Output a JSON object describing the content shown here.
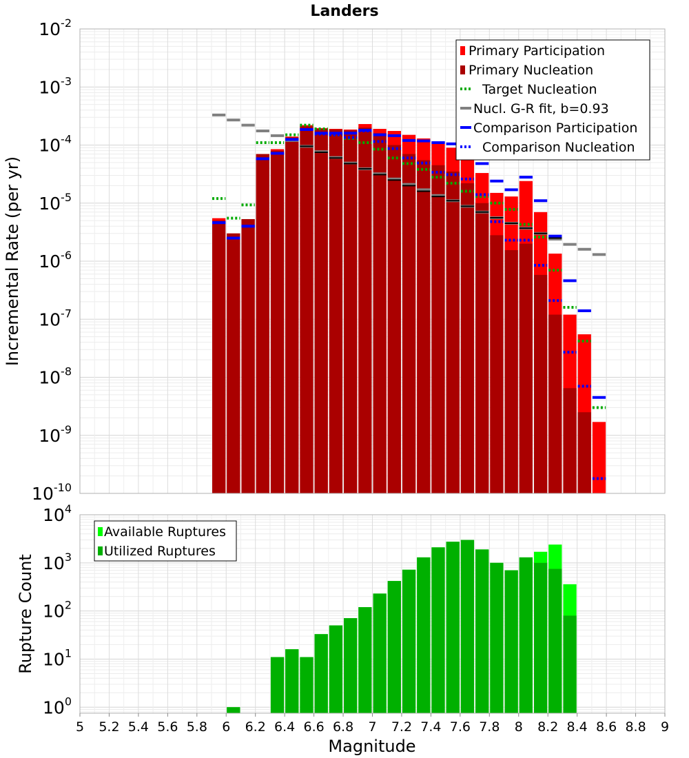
{
  "chart_data": [
    {
      "type": "bar",
      "title": "Landers",
      "xlabel": "",
      "ylabel": "Incremental Rate (per yr)",
      "yscale": "log",
      "ylim": [
        1e-10,
        0.01
      ],
      "xlim": [
        5,
        9
      ],
      "grid": true,
      "legend_position": "top-right",
      "bin_width": 0.1,
      "series": [
        {
          "name": "Primary Participation",
          "style": "bar",
          "color": "#ff0000",
          "x": [
            5.95,
            6.05,
            6.15,
            6.25,
            6.35,
            6.45,
            6.55,
            6.65,
            6.75,
            6.85,
            6.95,
            7.05,
            7.15,
            7.25,
            7.35,
            7.45,
            7.55,
            7.65,
            7.75,
            7.85,
            7.95,
            8.05,
            8.15,
            8.25,
            8.35,
            8.45,
            8.55
          ],
          "values": [
            5.5e-06,
            3e-06,
            5.3e-06,
            7e-05,
            8.5e-05,
            0.00014,
            0.00022,
            0.000195,
            0.00019,
            0.000185,
            0.00023,
            0.00019,
            0.000175,
            0.00015,
            0.00013,
            0.000115,
            9e-05,
            7e-05,
            3.3e-05,
            1.5e-05,
            1.3e-05,
            2.4e-05,
            7e-06,
            1.35e-06,
            1.2e-07,
            5.5e-08,
            1.7e-09
          ]
        },
        {
          "name": "Primary Nucleation",
          "style": "bar",
          "color": "#aa0000",
          "x": [
            5.95,
            6.05,
            6.15,
            6.25,
            6.35,
            6.45,
            6.55,
            6.65,
            6.75,
            6.85,
            6.95,
            7.05,
            7.15,
            7.25,
            7.35,
            7.45,
            7.55,
            7.65,
            7.75,
            7.85,
            7.95,
            8.05,
            8.15,
            8.25,
            8.35,
            8.45,
            8.55
          ],
          "values": [
            5e-06,
            3e-06,
            5.3e-06,
            7e-05,
            8e-05,
            0.000135,
            0.00021,
            0.00019,
            0.000185,
            0.00018,
            0.0002,
            0.00016,
            0.0001,
            7e-05,
            5.5e-05,
            4.5e-05,
            3.5e-05,
            2.2e-05,
            1e-05,
            2.8e-06,
            1.55e-06,
            2e-06,
            5.8e-07,
            1.2e-07,
            6.5e-09,
            2.5e-09,
            null
          ]
        },
        {
          "name": "Target Nucleation",
          "style": "dotted-step",
          "color": "#00aa00",
          "x": [
            5.95,
            6.05,
            6.15,
            6.25,
            6.35,
            6.45,
            6.55,
            6.65,
            6.75,
            6.85,
            6.95,
            7.05,
            7.15,
            7.25,
            7.35,
            7.45,
            7.55,
            7.65,
            7.75,
            7.85,
            7.95,
            8.05,
            8.15,
            8.25,
            8.35,
            8.45,
            8.55
          ],
          "values": [
            1.2e-05,
            5.5e-06,
            9.3e-06,
            0.00011,
            0.00011,
            0.00015,
            0.00022,
            0.00019,
            0.00015,
            0.00013,
            0.00011,
            8.5e-05,
            6e-05,
            4.8e-05,
            3.8e-05,
            2.8e-05,
            2.2e-05,
            1.6e-05,
            1.3e-05,
            1e-05,
            7.8e-06,
            4.3e-06,
            2.6e-06,
            7e-07,
            1.6e-07,
            4.2e-08,
            3e-09
          ]
        },
        {
          "name": "Nucl. G-R fit, b=0.93",
          "style": "step",
          "color": "#808080",
          "x": [
            5.95,
            6.05,
            6.15,
            6.25,
            6.35,
            6.45,
            6.55,
            6.65,
            6.75,
            6.85,
            6.95,
            7.05,
            7.15,
            7.25,
            7.35,
            7.45,
            7.55,
            7.65,
            7.75,
            7.85,
            7.95,
            8.05,
            8.15,
            8.25,
            8.35,
            8.45,
            8.55
          ],
          "values": [
            0.00033,
            0.00027,
            0.00022,
            0.000175,
            0.000145,
            0.00012,
            9.5e-05,
            7.7e-05,
            6.1e-05,
            4.9e-05,
            3.9e-05,
            3.2e-05,
            2.6e-05,
            2.1e-05,
            1.7e-05,
            1.35e-05,
            1.1e-05,
            8.8e-06,
            7e-06,
            5.6e-06,
            4.5e-06,
            3.7e-06,
            3e-06,
            2.4e-06,
            1.95e-06,
            1.6e-06,
            1.3e-06
          ]
        },
        {
          "name": "Comparison Participation",
          "style": "step",
          "color": "#0000ff",
          "x": [
            5.95,
            6.05,
            6.15,
            6.25,
            6.35,
            6.45,
            6.55,
            6.65,
            6.75,
            6.85,
            6.95,
            7.05,
            7.15,
            7.25,
            7.35,
            7.45,
            7.55,
            7.65,
            7.75,
            7.85,
            7.95,
            8.05,
            8.15,
            8.25,
            8.35,
            8.45,
            8.55
          ],
          "values": [
            4.6e-06,
            2.5e-06,
            4e-06,
            5.8e-05,
            7.2e-05,
            0.000125,
            0.000185,
            0.00016,
            0.00016,
            0.00016,
            0.00018,
            0.00015,
            0.000145,
            0.00012,
            0.000118,
            0.00011,
            0.000105,
            0.0001,
            4.8e-05,
            2.4e-05,
            1.7e-05,
            2.8e-05,
            1.1e-05,
            2.7e-06,
            4.6e-07,
            1.4e-07,
            4.5e-09
          ]
        },
        {
          "name": "Comparison Nucleation",
          "style": "dotted-step",
          "color": "#0000ff",
          "x": [
            5.95,
            6.05,
            6.15,
            6.25,
            6.35,
            6.45,
            6.55,
            6.65,
            6.75,
            6.85,
            6.95,
            7.05,
            7.15,
            7.25,
            7.35,
            7.45,
            7.55,
            7.65,
            7.75,
            7.85,
            7.95,
            8.05,
            8.15,
            8.25,
            8.35,
            8.45,
            8.55
          ],
          "values": [
            4.6e-06,
            2.5e-06,
            4e-06,
            5.8e-05,
            7.2e-05,
            0.000125,
            0.000185,
            0.000155,
            0.00015,
            0.000135,
            0.000175,
            0.000115,
            8.7e-05,
            6e-05,
            4.9e-05,
            3.4e-05,
            3.1e-05,
            2.6e-05,
            1.4e-05,
            4.8e-06,
            2.3e-06,
            2.3e-06,
            8.5e-07,
            2.1e-07,
            2.7e-08,
            7e-09,
            1.8e-10
          ]
        },
        {
          "name": "",
          "style": "step",
          "color": "#000000",
          "x": [
            5.95,
            6.05,
            6.15,
            6.25,
            6.35,
            6.45,
            6.55,
            6.65,
            6.75,
            6.85,
            6.95,
            7.05,
            7.15,
            7.25,
            7.35,
            7.45,
            7.55,
            7.65,
            7.75,
            7.85,
            7.95,
            8.05,
            8.15,
            8.25,
            8.35,
            8.45,
            8.55
          ],
          "values": [
            null,
            null,
            null,
            null,
            null,
            null,
            9.5e-05,
            7.5e-05,
            6e-05,
            4.8e-05,
            3.9e-05,
            3.1e-05,
            2.5e-05,
            2e-05,
            1.6e-05,
            1.3e-05,
            1.1e-05,
            8.8e-06,
            7e-06,
            5.6e-06,
            4.5e-06,
            3.7e-06,
            3e-06,
            2.5e-06,
            null,
            null,
            null
          ]
        }
      ]
    },
    {
      "type": "bar",
      "title": "",
      "xlabel": "Magnitude",
      "ylabel": "Rupture Count",
      "yscale": "log",
      "ylim": [
        0.75,
        10000
      ],
      "xlim": [
        5,
        9
      ],
      "grid": true,
      "legend_position": "top-left",
      "bin_width": 0.1,
      "x_ticks": [
        "5",
        "5.2",
        "5.4",
        "5.6",
        "5.8",
        "6",
        "6.2",
        "6.4",
        "6.6",
        "6.8",
        "7",
        "7.2",
        "7.4",
        "7.6",
        "7.8",
        "8",
        "8.2",
        "8.4",
        "8.6",
        "8.8",
        "9"
      ],
      "series": [
        {
          "name": "Available Ruptures",
          "color": "#00ff00",
          "x": [
            6.05,
            6.35,
            6.45,
            6.55,
            6.65,
            6.75,
            6.85,
            6.95,
            7.05,
            7.15,
            7.25,
            7.35,
            7.45,
            7.55,
            7.65,
            7.75,
            7.85,
            7.95,
            8.05,
            8.15,
            8.25,
            8.35
          ],
          "values": [
            1,
            11,
            16,
            11,
            33,
            50,
            71,
            120,
            230,
            420,
            720,
            1300,
            2100,
            2750,
            3000,
            1900,
            1000,
            700,
            1300,
            1700,
            2400,
            360
          ]
        },
        {
          "name": "Utilized Ruptures",
          "color": "#00b000",
          "x": [
            6.05,
            6.35,
            6.45,
            6.55,
            6.65,
            6.75,
            6.85,
            6.95,
            7.05,
            7.15,
            7.25,
            7.35,
            7.45,
            7.55,
            7.65,
            7.75,
            7.85,
            7.95,
            8.05,
            8.15,
            8.25,
            8.35
          ],
          "values": [
            1,
            11,
            16,
            11,
            33,
            50,
            71,
            120,
            230,
            420,
            720,
            1300,
            2100,
            2750,
            3000,
            1900,
            1000,
            700,
            1300,
            1000,
            750,
            80
          ]
        }
      ]
    }
  ]
}
